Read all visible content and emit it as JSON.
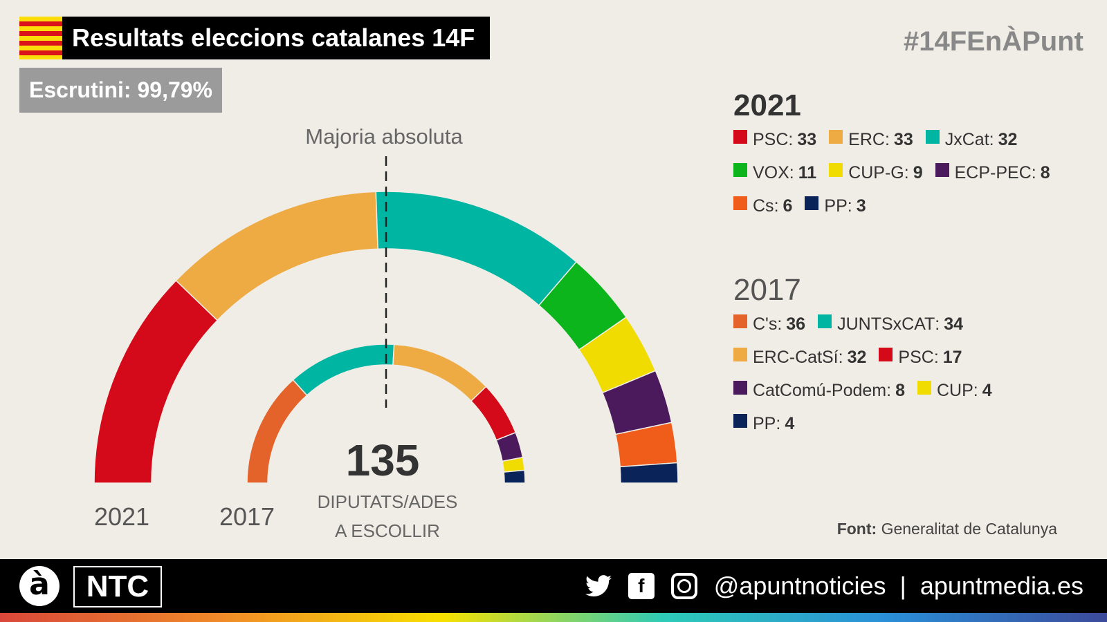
{
  "header": {
    "title": "Resultats eleccions catalanes 14F",
    "escrutini": "Escrutini: 99,79%",
    "hashtag": "#14FEnÀPunt"
  },
  "chart_data": {
    "type": "parliament-semicircle",
    "total_seats": 135,
    "total_label": "135",
    "total_caption_1": "DIPUTATS/ADES",
    "total_caption_2": "A ESCOLLIR",
    "majority_label": "Majoria absoluta",
    "series": [
      {
        "name": "2021",
        "parties": [
          {
            "name": "PSC",
            "seats": 33,
            "color": "#d40a1a"
          },
          {
            "name": "ERC",
            "seats": 33,
            "color": "#eeab44"
          },
          {
            "name": "JxCat",
            "seats": 32,
            "color": "#00b6a2"
          },
          {
            "name": "VOX",
            "seats": 11,
            "color": "#0cb51c"
          },
          {
            "name": "CUP-G",
            "seats": 9,
            "color": "#f0dc00"
          },
          {
            "name": "ECP-PEC",
            "seats": 8,
            "color": "#4a1a5c"
          },
          {
            "name": "Cs",
            "seats": 6,
            "color": "#f05c1a"
          },
          {
            "name": "PP",
            "seats": 3,
            "color": "#0a2459"
          }
        ]
      },
      {
        "name": "2017",
        "parties": [
          {
            "name": "C's",
            "seats": 36,
            "color": "#e4632a"
          },
          {
            "name": "JUNTSxCAT",
            "seats": 34,
            "color": "#00b6a2"
          },
          {
            "name": "ERC-CatSí",
            "seats": 32,
            "color": "#eeab44"
          },
          {
            "name": "PSC",
            "seats": 17,
            "color": "#d40a1a"
          },
          {
            "name": "CatComú-Podem",
            "seats": 8,
            "color": "#4a1a5c"
          },
          {
            "name": "CUP",
            "seats": 4,
            "color": "#f0dc00"
          },
          {
            "name": "PP",
            "seats": 4,
            "color": "#0a2459"
          }
        ]
      }
    ]
  },
  "source": {
    "label": "Font:",
    "value": "Generalitat de Catalunya"
  },
  "footer": {
    "logo_a": "à",
    "logo_ntc": "NTC",
    "handle": "@apuntnoticies",
    "separator": "|",
    "site": "apuntmedia.es"
  }
}
